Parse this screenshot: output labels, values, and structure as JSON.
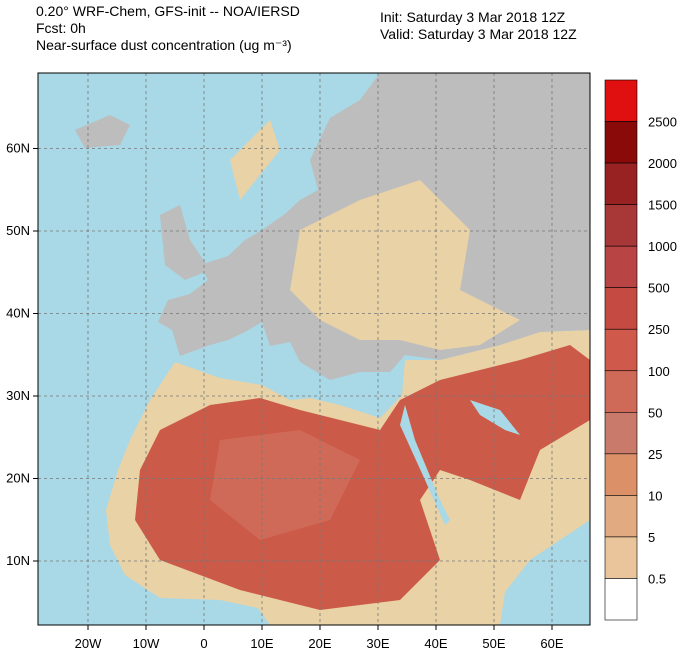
{
  "header": {
    "title": "0.20° WRF-Chem, GFS-init -- NOA/IERSD",
    "forecast": "Fcst: 0h",
    "variable": "Near-surface dust concentration (ug m⁻³)",
    "init": "Init: Saturday 3 Mar 2018  12Z",
    "valid": "Valid: Saturday 3 Mar 2018  12Z"
  },
  "map": {
    "lon_labels": [
      "20W",
      "10W",
      "0",
      "10E",
      "20E",
      "30E",
      "40E",
      "50E",
      "60E"
    ],
    "lat_labels": [
      "60N",
      "50N",
      "40N",
      "30N",
      "20N",
      "10N"
    ]
  },
  "colorbar": {
    "levels": [
      2500,
      2000,
      1500,
      1000,
      500,
      250,
      100,
      50,
      25,
      10,
      5,
      0.5
    ],
    "colors": [
      "#e01010",
      "#8a0a0a",
      "#982222",
      "#a83838",
      "#b84444",
      "#c44a42",
      "#cf5a4c",
      "#d06a58",
      "#ca7a6a",
      "#dc9068",
      "#e2aa80",
      "#eac49a",
      "#ffffff"
    ]
  }
}
